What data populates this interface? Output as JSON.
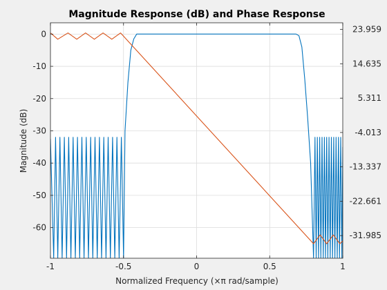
{
  "chart_data": {
    "type": "line",
    "title": "Magnitude Response (dB) and Phase Response",
    "xlabel": "Normalized Frequency (×π rad/sample)",
    "ylabel": "Magnitude (dB)",
    "xlim": [
      -1,
      1
    ],
    "ylim_left": [
      -69.5,
      3.5
    ],
    "ylim_right": [
      -38.13,
      25.76
    ],
    "x_ticks": [
      -1,
      -0.5,
      0,
      0.5,
      1
    ],
    "x_tick_labels": [
      "-1",
      "-0.5",
      "0",
      "0.5",
      "1"
    ],
    "y_ticks_left": [
      0,
      -10,
      -20,
      -30,
      -40,
      -50,
      -60
    ],
    "y_tick_labels_left": [
      "0",
      "-10",
      "-20",
      "-30",
      "-40",
      "-50",
      "-60"
    ],
    "y_ticks_right": [
      23.959,
      14.635,
      5.311,
      -4.013,
      -13.337,
      -22.661,
      -31.985
    ],
    "y_tick_labels_right": [
      "23.959",
      "14.635",
      "5.311",
      "-4.013",
      "-13.337",
      "-22.661",
      "-31.985"
    ],
    "grid": true,
    "colors": {
      "magnitude": "#0072bd",
      "phase": "#d95319",
      "plot_bg": "#ffffff",
      "figure_bg": "#f0f0f0"
    },
    "series": [
      {
        "axis": "left",
        "x": [
          -1.0,
          -0.978,
          -0.965,
          -0.95,
          -0.935,
          -0.92,
          -0.905,
          -0.89,
          -0.875,
          -0.86,
          -0.845,
          -0.83,
          -0.815,
          -0.8,
          -0.785,
          -0.77,
          -0.755,
          -0.74,
          -0.725,
          -0.71,
          -0.695,
          -0.68,
          -0.665,
          -0.65,
          -0.635,
          -0.62,
          -0.605,
          -0.59,
          -0.575,
          -0.56,
          -0.545,
          -0.53,
          -0.515,
          -0.5,
          -0.49,
          -0.47,
          -0.45,
          -0.43,
          -0.41,
          -0.39,
          -0.37,
          -0.35,
          -0.3,
          -0.2,
          -0.1,
          0.0,
          0.1,
          0.2,
          0.3,
          0.4,
          0.5,
          0.6,
          0.68,
          0.7,
          0.72,
          0.74,
          0.76,
          0.78,
          0.8,
          0.81,
          0.818,
          0.826,
          0.834,
          0.842,
          0.85,
          0.858,
          0.866,
          0.874,
          0.882,
          0.89,
          0.898,
          0.906,
          0.914,
          0.922,
          0.93,
          0.938,
          0.946,
          0.954,
          0.962,
          0.97,
          0.978,
          0.986,
          0.994,
          1.0
        ],
        "values": [
          -32.5,
          -69.5,
          -32,
          -69.5,
          -32,
          -69.5,
          -32,
          -69.5,
          -32,
          -69.5,
          -32,
          -69.5,
          -32,
          -69.5,
          -32,
          -69.5,
          -32,
          -69.5,
          -32,
          -69.5,
          -32,
          -69.5,
          -32,
          -69.5,
          -32,
          -69.5,
          -32,
          -69.5,
          -32,
          -69.5,
          -32,
          -69.5,
          -32,
          -69.5,
          -30,
          -15,
          -5,
          -1.5,
          0,
          0,
          0,
          0,
          0,
          0,
          0,
          0,
          0,
          0,
          0,
          0,
          0,
          0,
          0,
          -0.5,
          -4,
          -14,
          -26,
          -40,
          -69.5,
          -32,
          -69.5,
          -32,
          -69.5,
          -32,
          -69.5,
          -32,
          -69.5,
          -32,
          -69.5,
          -32,
          -69.5,
          -32,
          -69.5,
          -32,
          -69.5,
          -32,
          -69.5,
          -32,
          -69.5,
          -32,
          -69.5,
          -32,
          -69.5,
          -35
        ]
      },
      {
        "axis": "right",
        "x": [
          -1.0,
          -0.95,
          -0.88,
          -0.82,
          -0.76,
          -0.7,
          -0.64,
          -0.58,
          -0.52,
          0.8,
          0.845,
          0.89,
          0.935,
          0.98,
          1.0
        ],
        "values": [
          23.0,
          21.3,
          23.0,
          21.3,
          23.0,
          21.3,
          23.0,
          21.3,
          23.0,
          -34.2,
          -31.8,
          -34.2,
          -31.8,
          -34.2,
          -33.4
        ]
      }
    ]
  }
}
